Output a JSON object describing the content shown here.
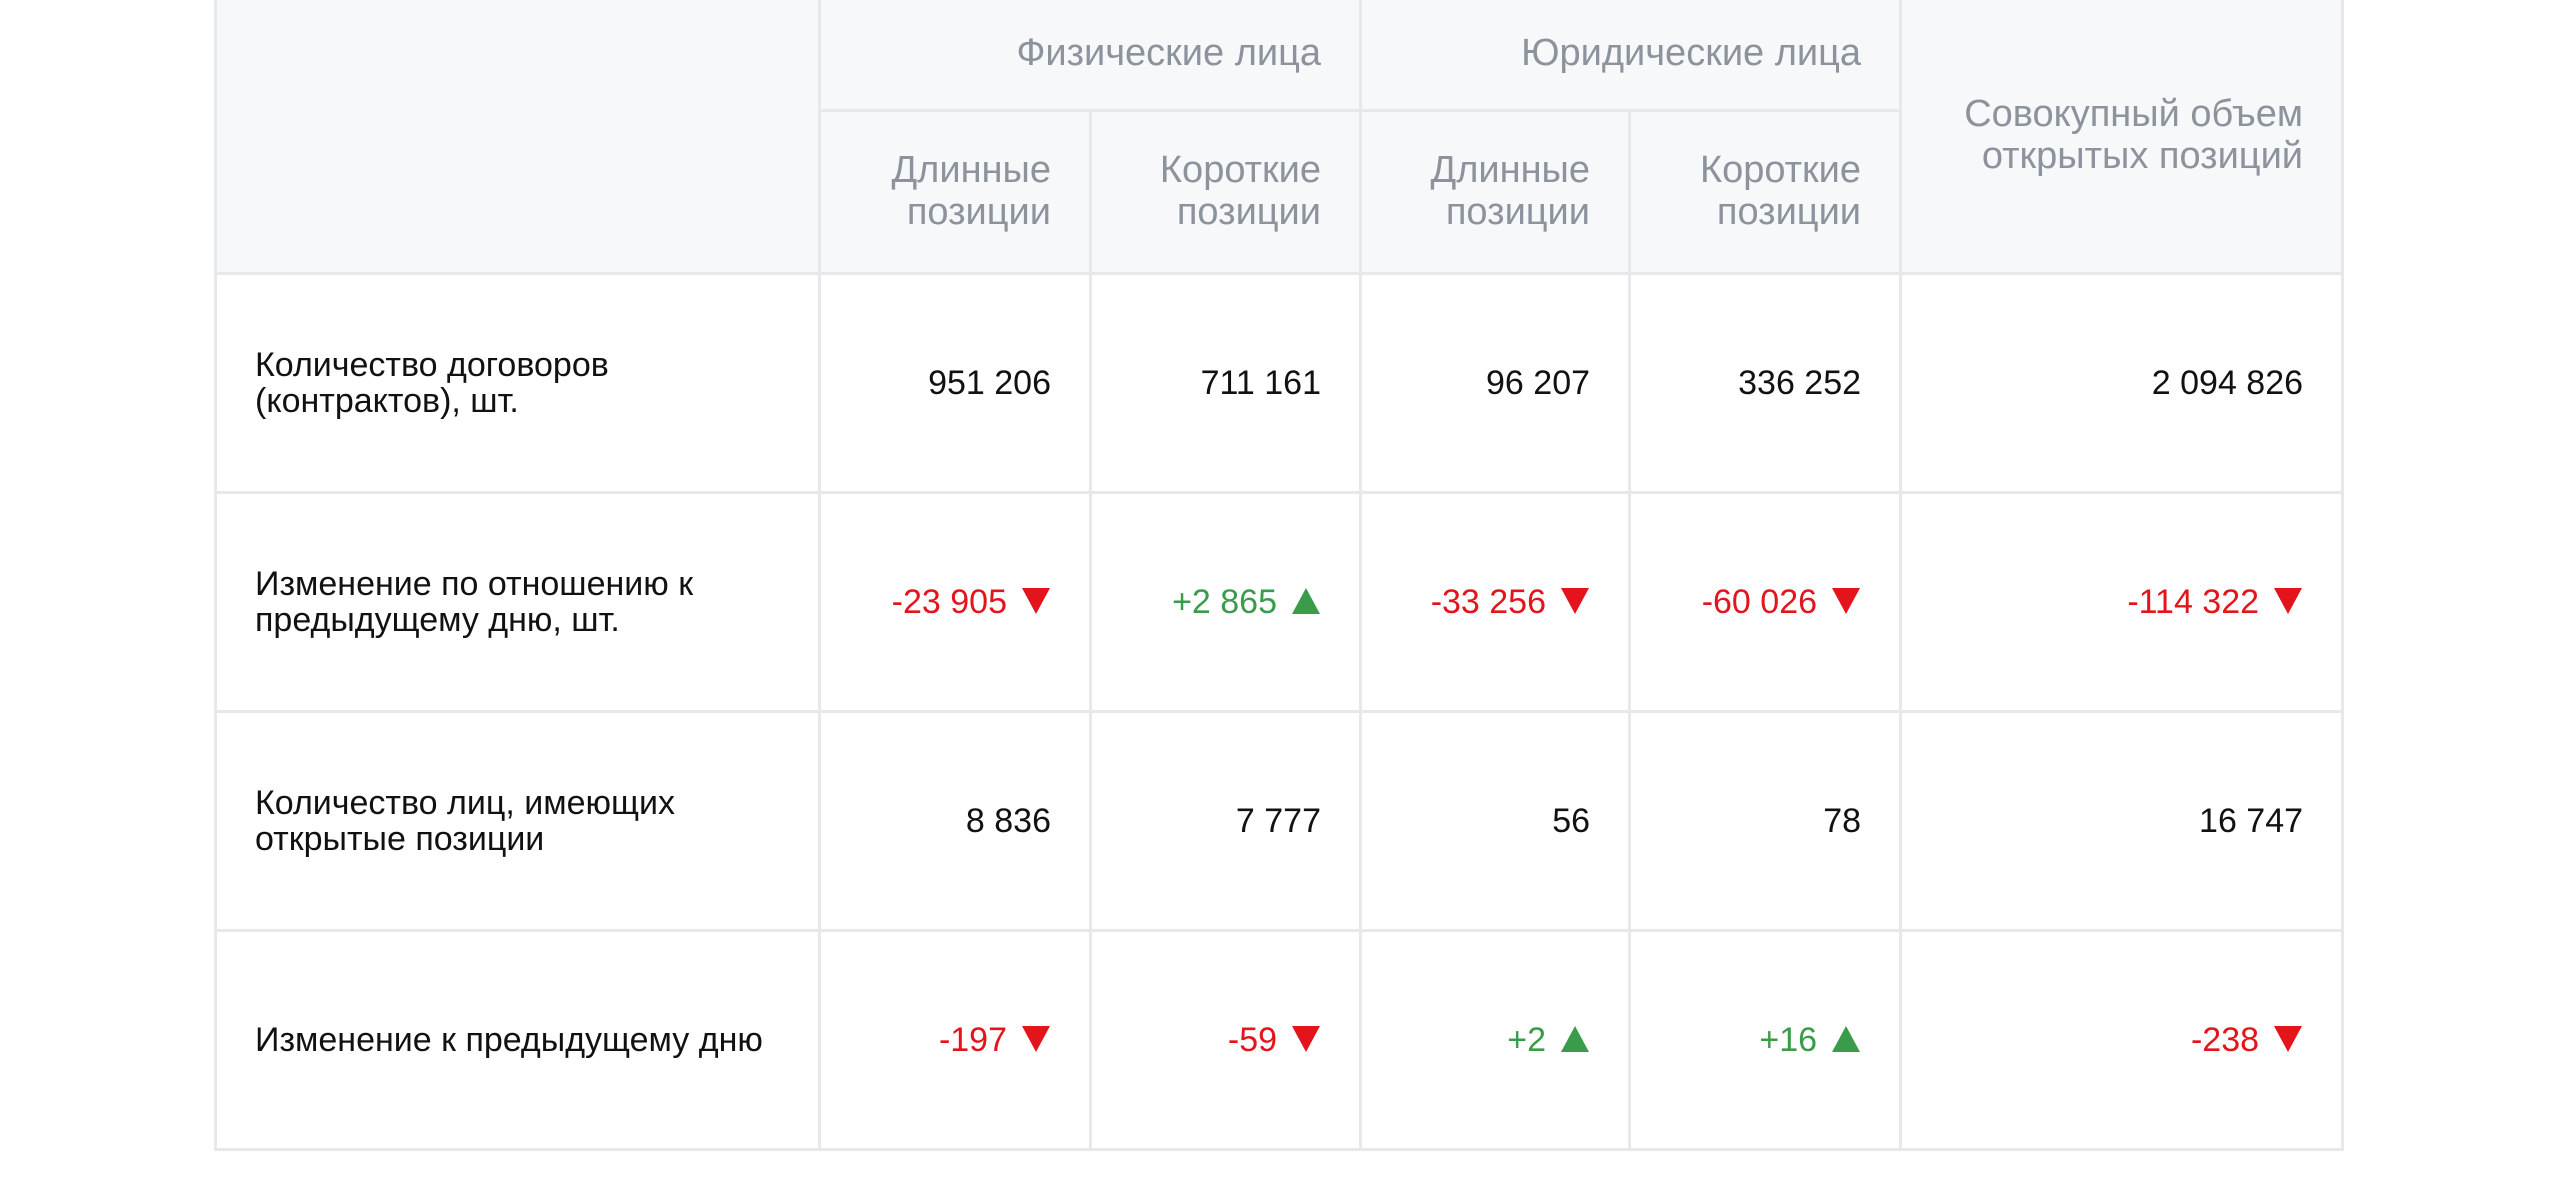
{
  "table": {
    "groups": [
      "Физические лица",
      "Юридические лица"
    ],
    "total_header": "Совокупный объем открытых позиций",
    "subheaders": [
      "Длинные позиции",
      "Короткие позиции",
      "Длинные позиции",
      "Короткие позиции"
    ],
    "rows": [
      {
        "label": "Количество договоров (контрактов), шт.",
        "cells": [
          "951 206",
          "711 161",
          "96 207",
          "336 252",
          "2 094 826"
        ]
      },
      {
        "label": "Изменение по отношению к предыдущему дню, шт.",
        "cells": [
          "-23 905",
          "+2 865",
          "-33 256",
          "-60 026",
          "-114 322"
        ]
      },
      {
        "label": "Количество лиц, имеющих открытые позиции",
        "cells": [
          "8 836",
          "7 777",
          "56",
          "78",
          "16 747"
        ]
      },
      {
        "label": "Изменение к предыдущему дню",
        "cells": [
          "-197",
          "-59",
          "+2",
          "+16",
          "-238"
        ]
      }
    ]
  }
}
